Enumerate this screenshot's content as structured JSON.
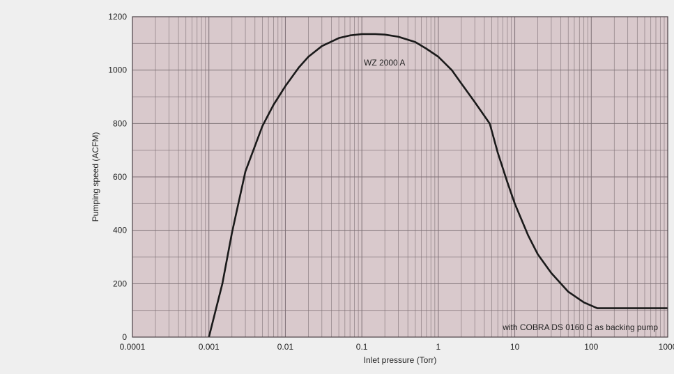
{
  "colors": {
    "background": "#efefef",
    "plot_fill": "#d9c9cc",
    "grid": "#7d7076",
    "curve": "#1a1a1a"
  },
  "chart_data": {
    "type": "line",
    "title": "",
    "xlabel": "Inlet pressure (Torr)",
    "ylabel": "Pumping speed (ACFM)",
    "xscale": "log",
    "xlim": [
      0.0001,
      1000
    ],
    "ylim": [
      0,
      1200
    ],
    "grid": true,
    "x_tick_values": [
      0.0001,
      0.001,
      0.01,
      0.1,
      1,
      10,
      100,
      1000
    ],
    "x_tick_labels": [
      "0.0001",
      "0.001",
      "0.01",
      "0.1",
      "1",
      "10",
      "100",
      "1000"
    ],
    "y_tick_values": [
      0,
      200,
      400,
      600,
      800,
      1000,
      1200
    ],
    "y_tick_labels": [
      "0",
      "200",
      "400",
      "600",
      "800",
      "1000",
      "1200"
    ],
    "series": [
      {
        "name": "WZ 2000 A",
        "x": [
          0.001,
          0.0015,
          0.002,
          0.003,
          0.005,
          0.007,
          0.01,
          0.015,
          0.02,
          0.03,
          0.05,
          0.07,
          0.1,
          0.15,
          0.2,
          0.3,
          0.5,
          0.7,
          1,
          1.5,
          2,
          3,
          4.7,
          6,
          8,
          10,
          15,
          20,
          30,
          50,
          80,
          120,
          200,
          500,
          1000
        ],
        "y": [
          0,
          200,
          390,
          620,
          790,
          870,
          940,
          1010,
          1050,
          1090,
          1120,
          1130,
          1135,
          1135,
          1133,
          1125,
          1105,
          1080,
          1050,
          1000,
          950,
          880,
          800,
          690,
          580,
          500,
          380,
          310,
          240,
          170,
          130,
          108,
          108,
          108,
          108
        ]
      }
    ],
    "annotations": {
      "series_label": "WZ 2000 A",
      "note": "with COBRA DS 0160 C as backing pump"
    }
  }
}
